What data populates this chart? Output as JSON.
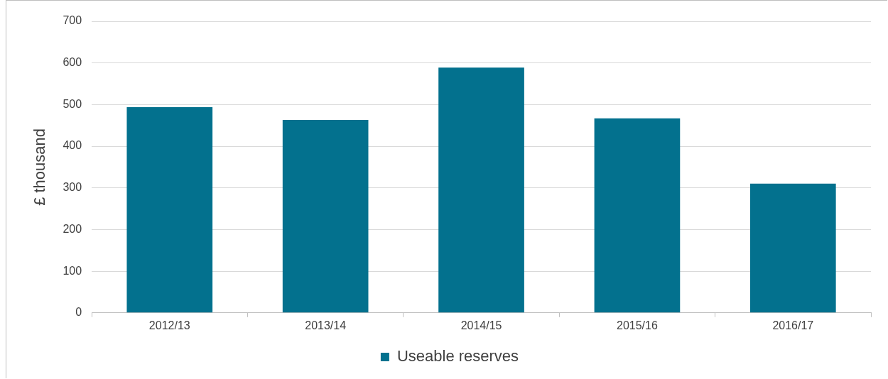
{
  "chart_data": {
    "type": "bar",
    "ylabel": "£ thousand",
    "categories": [
      "2012/13",
      "2013/14",
      "2014/15",
      "2015/16",
      "2016/17"
    ],
    "series": [
      {
        "name": "Useable reserves",
        "color": "#03718e",
        "values": [
          494,
          463,
          589,
          467,
          310
        ]
      }
    ],
    "ylim": [
      0,
      700
    ],
    "yticks": [
      0,
      100,
      200,
      300,
      400,
      500,
      600,
      700
    ],
    "grid": "y",
    "legend": "bottom"
  }
}
